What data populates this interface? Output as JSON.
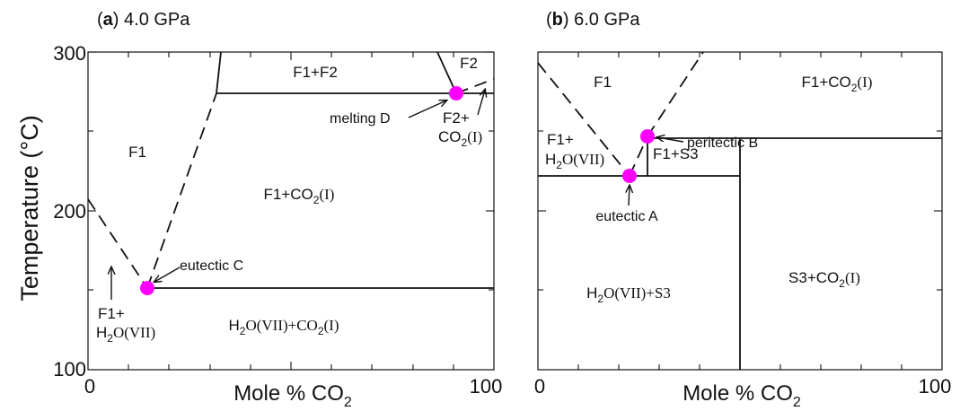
{
  "figure": {
    "ylabel": "Temperature (°C)",
    "dot_color": "#ff00ff",
    "panel_a": {
      "letter": "a",
      "pressure": "4.0 GPa",
      "xaxis_label": "Mole % CO",
      "xaxis_sub": "2",
      "x_ticks": [
        "0",
        "100"
      ],
      "y_ticks": [
        "100",
        "200",
        "300"
      ],
      "phases": {
        "f1": "F1",
        "f1_f2": "F1+F2",
        "f2": "F2",
        "f1_co2i": {
          "main": "F1+CO",
          "sub": "2",
          "tail": "(I)"
        },
        "h2o_co2": {
          "a": "H",
          "a_sub": "2",
          "b": "O(VII)+CO",
          "b_sub": "2",
          "c": "(I)"
        },
        "f1_h2o_line1": "F1+",
        "f1_h2o_line2": {
          "a": "H",
          "sub": "2",
          "b": "O(VII)"
        },
        "f2_co2_line1": "F2+",
        "f2_co2_line2": {
          "a": "CO",
          "sub": "2",
          "b": "(I)"
        }
      },
      "annotations": {
        "eutectic": "eutectic C",
        "melting": "melting D"
      }
    },
    "panel_b": {
      "letter": "b",
      "pressure": "6.0 GPa",
      "xaxis_label": "Mole % CO",
      "xaxis_sub": "2",
      "x_ticks": [
        "0",
        "100"
      ],
      "phases": {
        "f1": "F1",
        "f1_co2i": {
          "main": "F1+CO",
          "sub": "2",
          "tail": "(I)"
        },
        "f1_h2o_line1": "F1+",
        "f1_h2o_line2": {
          "a": "H",
          "sub": "2",
          "b": "O(VII)"
        },
        "f1_s3": "F1+S3",
        "h2o_s3": {
          "a": "H",
          "sub": "2",
          "b": "O(VII)+S3"
        },
        "s3_co2i": {
          "a": "S3+CO",
          "sub": "2",
          "b": "(I)"
        }
      },
      "annotations": {
        "eutectic": "eutectic A",
        "peritectic": "peritectic B"
      }
    }
  }
}
